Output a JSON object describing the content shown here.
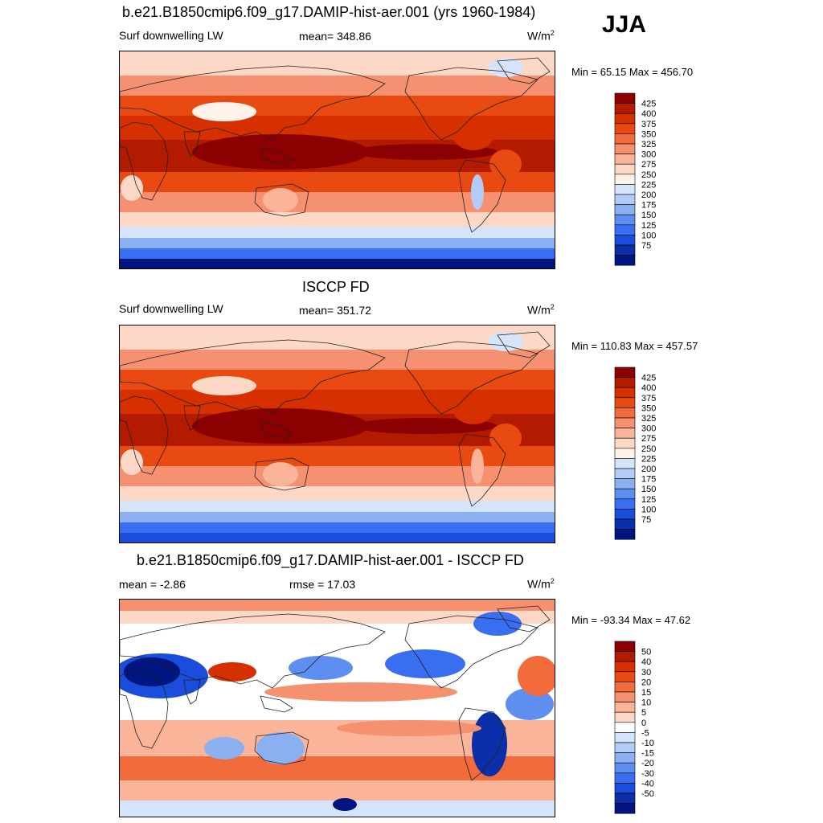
{
  "season": "JJA",
  "units_base": "W/m",
  "units_exp": "2",
  "panels": [
    {
      "title": "b.e21.B1850cmip6.f09_g17.DAMIP-hist-aer.001 (yrs 1960-1984)",
      "left_label": "Surf downwelling LW",
      "center_label": "mean= 348.86",
      "minmax": "Min =  65.15 Max = 456.70",
      "kind": "model"
    },
    {
      "title": "ISCCP FD",
      "left_label": "Surf downwelling LW",
      "center_label": "mean= 351.72",
      "minmax": "Min = 110.83 Max = 457.57",
      "kind": "obs"
    },
    {
      "title": "b.e21.B1850cmip6.f09_g17.DAMIP-hist-aer.001 - ISCCP FD",
      "left_label": "mean =  -2.86",
      "center_label": "rmse =  17.03",
      "minmax": "Min = -93.34 Max =  47.62",
      "kind": "diff"
    }
  ],
  "colorbars": {
    "absolute": {
      "levels": [
        "425",
        "400",
        "375",
        "350",
        "325",
        "300",
        "275",
        "250",
        "225",
        "200",
        "175",
        "150",
        "125",
        "100",
        "75"
      ],
      "colors": [
        "#8b0000",
        "#b31b00",
        "#d63000",
        "#e84a12",
        "#f26b3a",
        "#f59070",
        "#fab49a",
        "#fdd8c6",
        "#fff2e8",
        "#d6e4fb",
        "#b3ccf7",
        "#8ab0f2",
        "#5e8ff0",
        "#3a6ef0",
        "#1a4ddb",
        "#0a2fa8",
        "#001580"
      ]
    },
    "difference": {
      "levels": [
        "50",
        "40",
        "30",
        "20",
        "15",
        "10",
        "5",
        "0",
        "-5",
        "-10",
        "-15",
        "-20",
        "-30",
        "-40",
        "-50"
      ],
      "colors": [
        "#8b0000",
        "#b31b00",
        "#d63000",
        "#e84a12",
        "#f26b3a",
        "#f59070",
        "#fab49a",
        "#fdd8c6",
        "#ffffff",
        "#d6e4fb",
        "#b3ccf7",
        "#8ab0f2",
        "#5e8ff0",
        "#3a6ef0",
        "#1a4ddb",
        "#0a2fa8",
        "#001580"
      ]
    }
  }
}
